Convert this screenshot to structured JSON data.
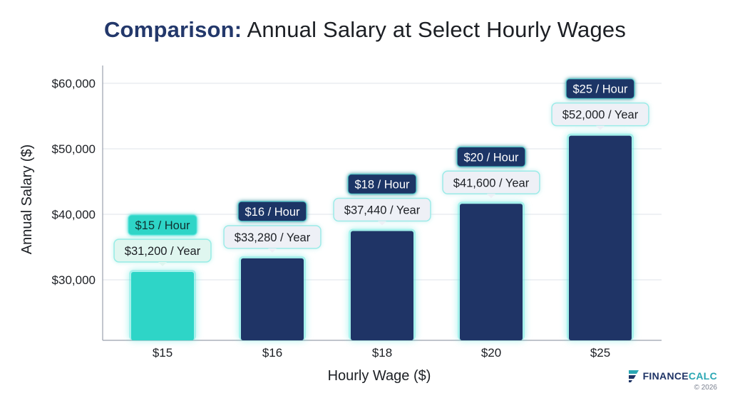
{
  "title": {
    "prefix": "Comparison:",
    "main": "Annual Salary at Select Hourly Wages"
  },
  "brand": {
    "name_part1": "FINANCE",
    "name_part2": "CALC",
    "copyright": "© 2026"
  },
  "colors": {
    "bar_default": "#1f3466",
    "bar_highlight": "#2ed5c7",
    "label_default_bg": "#1f3466",
    "label_highlight_bg": "#2ed5c7",
    "value_label_bg": "#eef0f6",
    "value_label_highlight_bg": "#dff6ef",
    "glow": "#5ee6de",
    "grid": "#dfe3ea",
    "axis": "#9aa1ad",
    "text": "#1c1f24"
  },
  "chart_data": {
    "type": "bar",
    "title": "Comparison: Annual Salary at Select Hourly Wages",
    "xlabel": "Hourly Wage ($)",
    "ylabel": "Annual Salary ($)",
    "categories": [
      "$15",
      "$16",
      "$18",
      "$20",
      "$25"
    ],
    "values": [
      31200,
      33280,
      37440,
      41600,
      52000
    ],
    "ylim": [
      20000,
      60000
    ],
    "yticks": [
      30000,
      40000,
      50000,
      60000
    ],
    "ytick_labels": [
      "$30,000",
      "$40,000",
      "$50,000",
      "$60,000"
    ],
    "rate_labels": [
      "$15 / Hour",
      "$16 / Hour",
      "$18 / Hour",
      "$20 / Hour",
      "$25 / Hour"
    ],
    "value_labels": [
      "$31,200 / Year",
      "$33,280 / Year",
      "$37,440 / Year",
      "$41,600 / Year",
      "$52,000 / Year"
    ],
    "highlight_index": 0,
    "grid": true,
    "legend": "none"
  }
}
